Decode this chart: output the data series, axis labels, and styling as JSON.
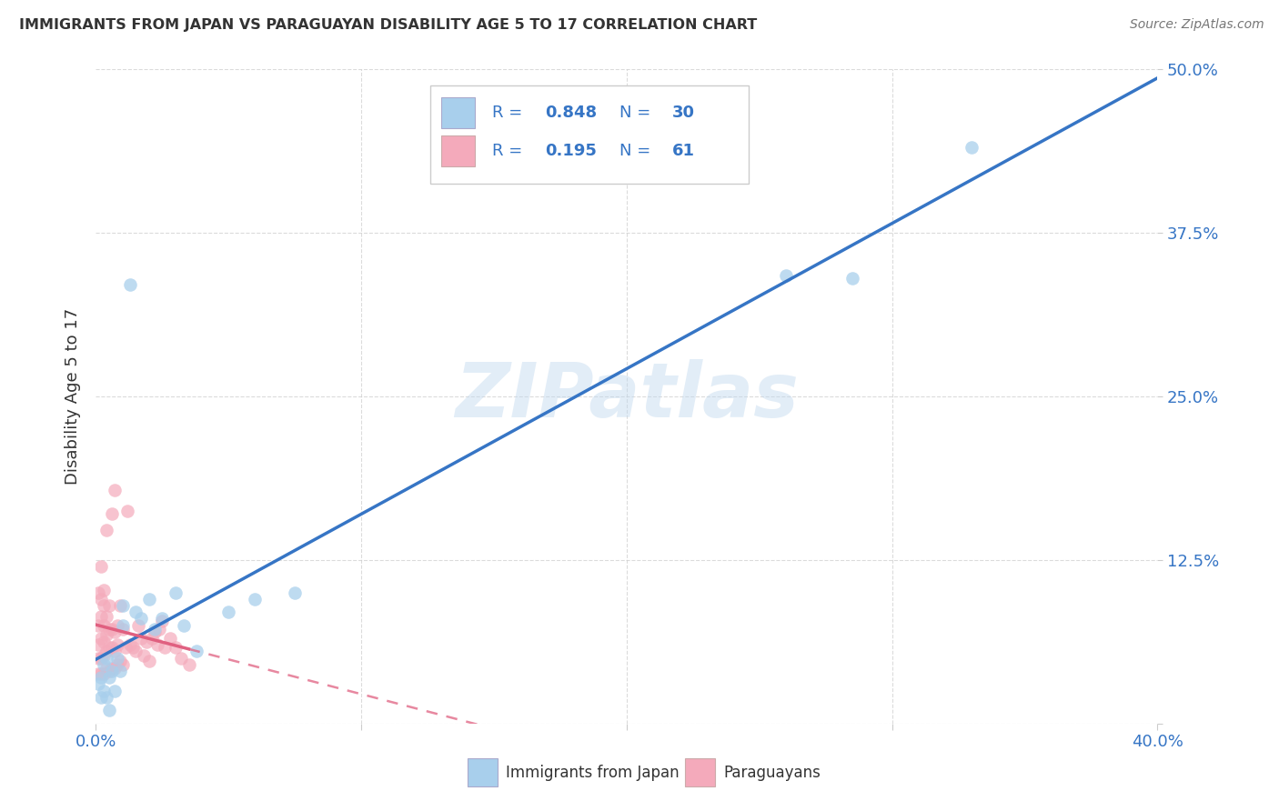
{
  "title": "IMMIGRANTS FROM JAPAN VS PARAGUAYAN DISABILITY AGE 5 TO 17 CORRELATION CHART",
  "source": "Source: ZipAtlas.com",
  "ylabel_label": "Disability Age 5 to 17",
  "x_min": 0.0,
  "x_max": 0.4,
  "y_min": 0.0,
  "y_max": 0.5,
  "x_ticks": [
    0.0,
    0.1,
    0.2,
    0.3,
    0.4
  ],
  "x_tick_labels_show": [
    "0.0%",
    "",
    "",
    "",
    "40.0%"
  ],
  "y_ticks": [
    0.0,
    0.125,
    0.25,
    0.375,
    0.5
  ],
  "y_tick_labels": [
    "",
    "12.5%",
    "25.0%",
    "37.5%",
    "50.0%"
  ],
  "r_japan": 0.848,
  "n_japan": 30,
  "r_paraguay": 0.195,
  "n_paraguay": 61,
  "color_japan": "#A8CFEC",
  "color_paraguay": "#F4AABB",
  "color_japan_line": "#3675C5",
  "color_paraguay_line": "#E06080",
  "watermark_text": "ZIPatlas",
  "japan_x": [
    0.001,
    0.002,
    0.002,
    0.003,
    0.003,
    0.004,
    0.004,
    0.005,
    0.005,
    0.006,
    0.007,
    0.008,
    0.009,
    0.01,
    0.01,
    0.013,
    0.015,
    0.017,
    0.02,
    0.022,
    0.025,
    0.03,
    0.033,
    0.038,
    0.05,
    0.06,
    0.075,
    0.26,
    0.285,
    0.33
  ],
  "japan_y": [
    0.03,
    0.035,
    0.02,
    0.045,
    0.025,
    0.05,
    0.02,
    0.035,
    0.01,
    0.04,
    0.025,
    0.05,
    0.04,
    0.075,
    0.09,
    0.335,
    0.085,
    0.08,
    0.095,
    0.072,
    0.08,
    0.1,
    0.075,
    0.055,
    0.085,
    0.095,
    0.1,
    0.342,
    0.34,
    0.44
  ],
  "paraguay_x": [
    0.001,
    0.001,
    0.001,
    0.001,
    0.001,
    0.002,
    0.002,
    0.002,
    0.002,
    0.002,
    0.002,
    0.003,
    0.003,
    0.003,
    0.003,
    0.003,
    0.003,
    0.004,
    0.004,
    0.004,
    0.004,
    0.004,
    0.005,
    0.005,
    0.005,
    0.005,
    0.006,
    0.006,
    0.006,
    0.006,
    0.007,
    0.007,
    0.007,
    0.007,
    0.008,
    0.008,
    0.008,
    0.009,
    0.009,
    0.01,
    0.01,
    0.011,
    0.012,
    0.013,
    0.014,
    0.015,
    0.016,
    0.017,
    0.018,
    0.019,
    0.02,
    0.021,
    0.022,
    0.023,
    0.024,
    0.025,
    0.026,
    0.028,
    0.03,
    0.032,
    0.035
  ],
  "paraguay_y": [
    0.038,
    0.05,
    0.06,
    0.075,
    0.1,
    0.038,
    0.05,
    0.065,
    0.082,
    0.095,
    0.12,
    0.038,
    0.052,
    0.062,
    0.075,
    0.09,
    0.102,
    0.042,
    0.055,
    0.068,
    0.082,
    0.148,
    0.04,
    0.058,
    0.072,
    0.09,
    0.042,
    0.058,
    0.072,
    0.16,
    0.042,
    0.055,
    0.07,
    0.178,
    0.045,
    0.06,
    0.075,
    0.048,
    0.09,
    0.045,
    0.072,
    0.058,
    0.162,
    0.06,
    0.058,
    0.055,
    0.075,
    0.065,
    0.052,
    0.062,
    0.048,
    0.065,
    0.07,
    0.06,
    0.072,
    0.078,
    0.058,
    0.065,
    0.058,
    0.05,
    0.045
  ],
  "legend_label_japan": "Immigrants from Japan",
  "legend_label_paraguay": "Paraguayans",
  "background_color": "#ffffff",
  "grid_color": "#cccccc",
  "tick_color": "#3675C5",
  "title_color": "#333333",
  "source_color": "#777777"
}
